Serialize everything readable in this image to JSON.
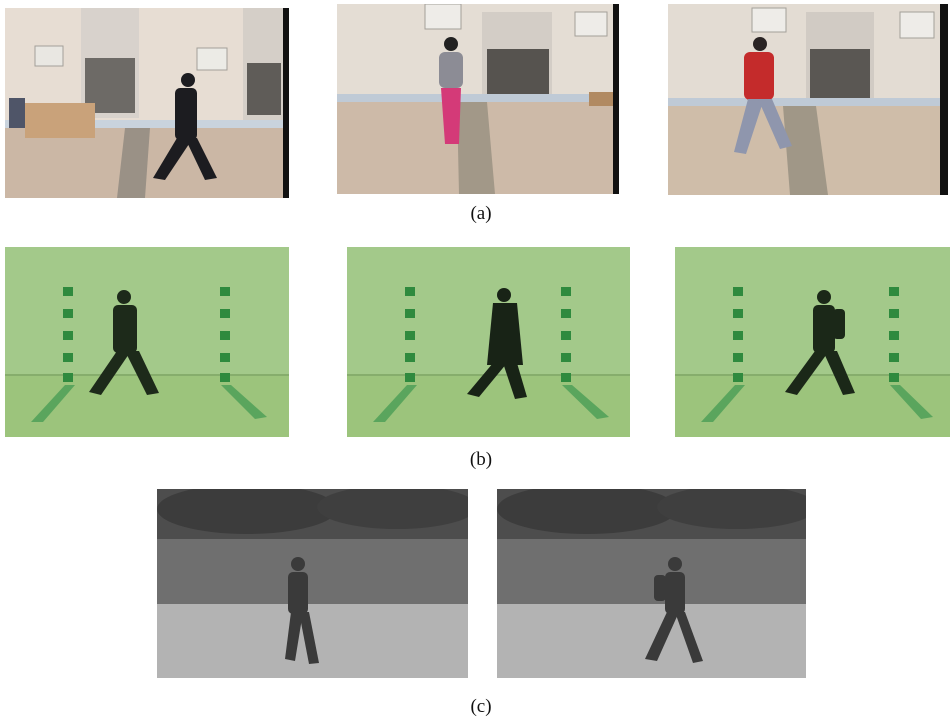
{
  "figure": {
    "captions": {
      "a": "(a)",
      "b": "(b)",
      "c": "(c)"
    },
    "colors": {
      "outdoor_wall": "#e6dcd2",
      "outdoor_ground": "#cdb9a6",
      "studio_green": "#9ec47c",
      "studio_marker": "#2f8a3e",
      "infrared_sky": "#4a4a4a",
      "infrared_wall": "#6e6e6e",
      "infrared_ground": "#b0b0b0"
    }
  }
}
